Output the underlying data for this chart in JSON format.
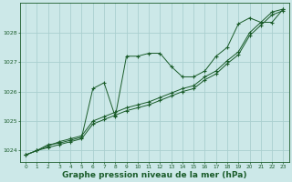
{
  "bg_color": "#cce8e8",
  "grid_color": "#aacfcf",
  "line_color": "#1a5c2a",
  "xlabel": "Graphe pression niveau de la mer (hPa)",
  "xlabel_fontsize": 6.5,
  "xticks": [
    0,
    1,
    2,
    3,
    4,
    5,
    6,
    7,
    8,
    9,
    10,
    11,
    12,
    13,
    14,
    15,
    16,
    17,
    18,
    19,
    20,
    21,
    22,
    23
  ],
  "yticks": [
    1024,
    1025,
    1026,
    1027,
    1028
  ],
  "ylim": [
    1023.6,
    1029.0
  ],
  "xlim": [
    -0.5,
    23.5
  ],
  "series": [
    [
      1023.85,
      1024.0,
      1024.2,
      1024.25,
      1024.35,
      1024.45,
      1026.1,
      1026.3,
      1025.15,
      1027.2,
      1027.2,
      1027.3,
      1027.3,
      1026.85,
      1026.5,
      1026.5,
      1026.7,
      1027.2,
      1027.5,
      1028.3,
      1028.5,
      1028.35,
      1028.35,
      1028.8
    ],
    [
      1023.85,
      1024.0,
      1024.15,
      1024.3,
      1024.4,
      1024.5,
      1025.0,
      1025.15,
      1025.3,
      1025.45,
      1025.55,
      1025.65,
      1025.8,
      1025.95,
      1026.1,
      1026.2,
      1026.5,
      1026.7,
      1027.05,
      1027.35,
      1028.0,
      1028.35,
      1028.7,
      1028.8
    ],
    [
      1023.85,
      1024.0,
      1024.1,
      1024.2,
      1024.3,
      1024.4,
      1024.9,
      1025.05,
      1025.2,
      1025.35,
      1025.45,
      1025.55,
      1025.7,
      1025.85,
      1026.0,
      1026.1,
      1026.4,
      1026.6,
      1026.95,
      1027.25,
      1027.9,
      1028.25,
      1028.6,
      1028.75
    ]
  ]
}
